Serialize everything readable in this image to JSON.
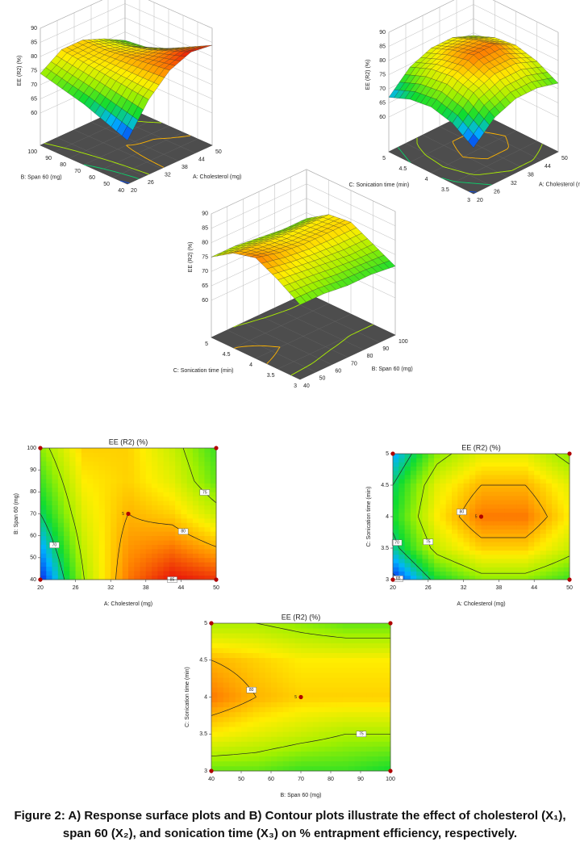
{
  "chart_data": [
    {
      "type": "surface",
      "x_label": "A: Cholesterol (mg)",
      "y_label": "B: Span 60 (mg)",
      "z_label": "EE (R2) (%)",
      "x": [
        20,
        27.5,
        35,
        42.5,
        50
      ],
      "y": [
        40,
        55,
        70,
        85,
        100
      ],
      "z": [
        [
          64,
          75,
          82,
          85,
          84
        ],
        [
          67,
          76,
          81,
          82,
          80
        ],
        [
          70,
          77,
          80,
          79,
          76
        ],
        [
          72,
          78,
          79,
          77,
          73
        ],
        [
          74,
          79,
          79,
          76,
          72
        ]
      ],
      "xlim": [
        20,
        50
      ],
      "ylim": [
        40,
        100
      ],
      "zlim": [
        60,
        90
      ],
      "xticks": [
        20,
        26,
        32,
        38,
        44,
        50
      ],
      "yticks": [
        40,
        50,
        60,
        70,
        80,
        90,
        100
      ],
      "zticks": [
        60,
        65,
        70,
        75,
        80,
        85,
        90
      ],
      "colormap": [
        "#0a1ee8",
        "#00b4ff",
        "#10dc30",
        "#9ff000",
        "#ffee00",
        "#ff8800",
        "#e8120a"
      ]
    },
    {
      "type": "surface",
      "x_label": "A: Cholesterol (mg)",
      "y_label": "C: Sonication time (min)",
      "z_label": "EE (R2) (%)",
      "x": [
        20,
        27.5,
        35,
        42.5,
        50
      ],
      "y": [
        3,
        3.5,
        4,
        4.5,
        5
      ],
      "z": [
        [
          64,
          71,
          74,
          74,
          72
        ],
        [
          69,
          76,
          79,
          79,
          76
        ],
        [
          71,
          78,
          82,
          82,
          78
        ],
        [
          70,
          77,
          80,
          80,
          77
        ],
        [
          67,
          74,
          77,
          77,
          74
        ]
      ],
      "xlim": [
        20,
        50
      ],
      "ylim": [
        3,
        5
      ],
      "zlim": [
        60,
        90
      ],
      "xticks": [
        20,
        26,
        32,
        38,
        44,
        50
      ],
      "yticks": [
        3,
        3.5,
        4,
        4.5,
        5
      ],
      "zticks": [
        60,
        65,
        70,
        75,
        80,
        85,
        90
      ],
      "colormap": [
        "#0a1ee8",
        "#00b4ff",
        "#10dc30",
        "#9ff000",
        "#ffee00",
        "#ff8800",
        "#e8120a"
      ]
    },
    {
      "type": "surface",
      "x_label": "B: Span 60 (mg)",
      "y_label": "C: Sonication time (min)",
      "z_label": "EE (R2) (%)",
      "x": [
        40,
        55,
        70,
        85,
        100
      ],
      "y": [
        3,
        3.5,
        4,
        4.5,
        5
      ],
      "z": [
        [
          73,
          73,
          72,
          72,
          71
        ],
        [
          78,
          77,
          76,
          75,
          75
        ],
        [
          82,
          80,
          79,
          79,
          79
        ],
        [
          80,
          79,
          78,
          78,
          78
        ],
        [
          75,
          75,
          74,
          73,
          73
        ]
      ],
      "xlim": [
        40,
        100
      ],
      "ylim": [
        3,
        5
      ],
      "zlim": [
        60,
        90
      ],
      "xticks": [
        40,
        50,
        60,
        70,
        80,
        90,
        100
      ],
      "yticks": [
        3,
        3.5,
        4,
        4.5,
        5
      ],
      "zticks": [
        60,
        65,
        70,
        75,
        80,
        85,
        90
      ],
      "colormap": [
        "#0a1ee8",
        "#00b4ff",
        "#10dc30",
        "#9ff000",
        "#ffee00",
        "#ff8800",
        "#e8120a"
      ]
    },
    {
      "type": "contour",
      "title": "EE (R2) (%)",
      "x_label": "A: Cholesterol (mg)",
      "y_label": "B: Span 60 (mg)",
      "x": [
        20,
        27.5,
        35,
        42.5,
        50
      ],
      "y": [
        40,
        55,
        70,
        85,
        100
      ],
      "z": [
        [
          64,
          75,
          82,
          85,
          84
        ],
        [
          67,
          76,
          81,
          82,
          80
        ],
        [
          70,
          77,
          80,
          79,
          76
        ],
        [
          72,
          78,
          79,
          77,
          73
        ],
        [
          74,
          79,
          79,
          76,
          72
        ]
      ],
      "xlim": [
        20,
        50
      ],
      "ylim": [
        40,
        100
      ],
      "xticks": [
        20,
        26,
        32,
        38,
        44,
        50
      ],
      "yticks": [
        40,
        50,
        60,
        70,
        80,
        90,
        100
      ],
      "levels": [
        70,
        75,
        80,
        85
      ],
      "points": {
        "x": [
          20,
          50,
          20,
          50,
          35
        ],
        "y": [
          40,
          40,
          100,
          100,
          70
        ]
      },
      "replicate_label": "5",
      "point_color": "#b00000",
      "colormap": [
        "#0a1ee8",
        "#00b4ff",
        "#10dc30",
        "#9ff000",
        "#ffee00",
        "#ff8800",
        "#e8120a"
      ]
    },
    {
      "type": "contour",
      "title": "EE (R2) (%)",
      "x_label": "A: Cholesterol (mg)",
      "y_label": "C: Sonication time (min)",
      "x": [
        20,
        27.5,
        35,
        42.5,
        50
      ],
      "y": [
        3,
        3.5,
        4,
        4.5,
        5
      ],
      "z": [
        [
          64,
          71,
          74,
          74,
          72
        ],
        [
          69,
          76,
          79,
          79,
          76
        ],
        [
          71,
          78,
          82,
          82,
          78
        ],
        [
          70,
          77,
          80,
          80,
          77
        ],
        [
          67,
          74,
          77,
          77,
          74
        ]
      ],
      "xlim": [
        20,
        50
      ],
      "ylim": [
        3,
        5
      ],
      "xticks": [
        20,
        26,
        32,
        38,
        44,
        50
      ],
      "yticks": [
        3,
        3.5,
        4,
        4.5,
        5
      ],
      "levels": [
        65,
        70,
        75,
        80
      ],
      "points": {
        "x": [
          20,
          50,
          20,
          50,
          35
        ],
        "y": [
          3,
          3,
          5,
          5,
          4
        ]
      },
      "replicate_label": "5",
      "point_color": "#b00000",
      "colormap": [
        "#0a1ee8",
        "#00b4ff",
        "#10dc30",
        "#9ff000",
        "#ffee00",
        "#ff8800",
        "#e8120a"
      ]
    },
    {
      "type": "contour",
      "title": "EE (R2) (%)",
      "x_label": "B: Span 60 (mg)",
      "y_label": "C: Sonication time (min)",
      "x": [
        40,
        55,
        70,
        85,
        100
      ],
      "y": [
        3,
        3.5,
        4,
        4.5,
        5
      ],
      "z": [
        [
          73,
          73,
          72,
          72,
          71
        ],
        [
          78,
          77,
          76,
          75,
          75
        ],
        [
          82,
          80,
          79,
          79,
          79
        ],
        [
          80,
          79,
          78,
          78,
          78
        ],
        [
          75,
          75,
          74,
          73,
          73
        ]
      ],
      "xlim": [
        40,
        100
      ],
      "ylim": [
        3,
        5
      ],
      "xticks": [
        40,
        50,
        60,
        70,
        80,
        90,
        100
      ],
      "yticks": [
        3,
        3.5,
        4,
        4.5,
        5
      ],
      "levels": [
        75,
        80
      ],
      "points": {
        "x": [
          40,
          100,
          40,
          100,
          70
        ],
        "y": [
          3,
          3,
          5,
          5,
          4
        ]
      },
      "replicate_label": "5",
      "point_color": "#b00000",
      "colormap": [
        "#0a1ee8",
        "#00b4ff",
        "#10dc30",
        "#9ff000",
        "#ffee00",
        "#ff8800",
        "#e8120a"
      ]
    }
  ],
  "caption": "Figure 2: A) Response surface plots and B) Contour plots illustrate the effect of cholesterol (X₁), span 60 (X₂), and sonication time (X₃) on % entrapment efficiency, respectively."
}
